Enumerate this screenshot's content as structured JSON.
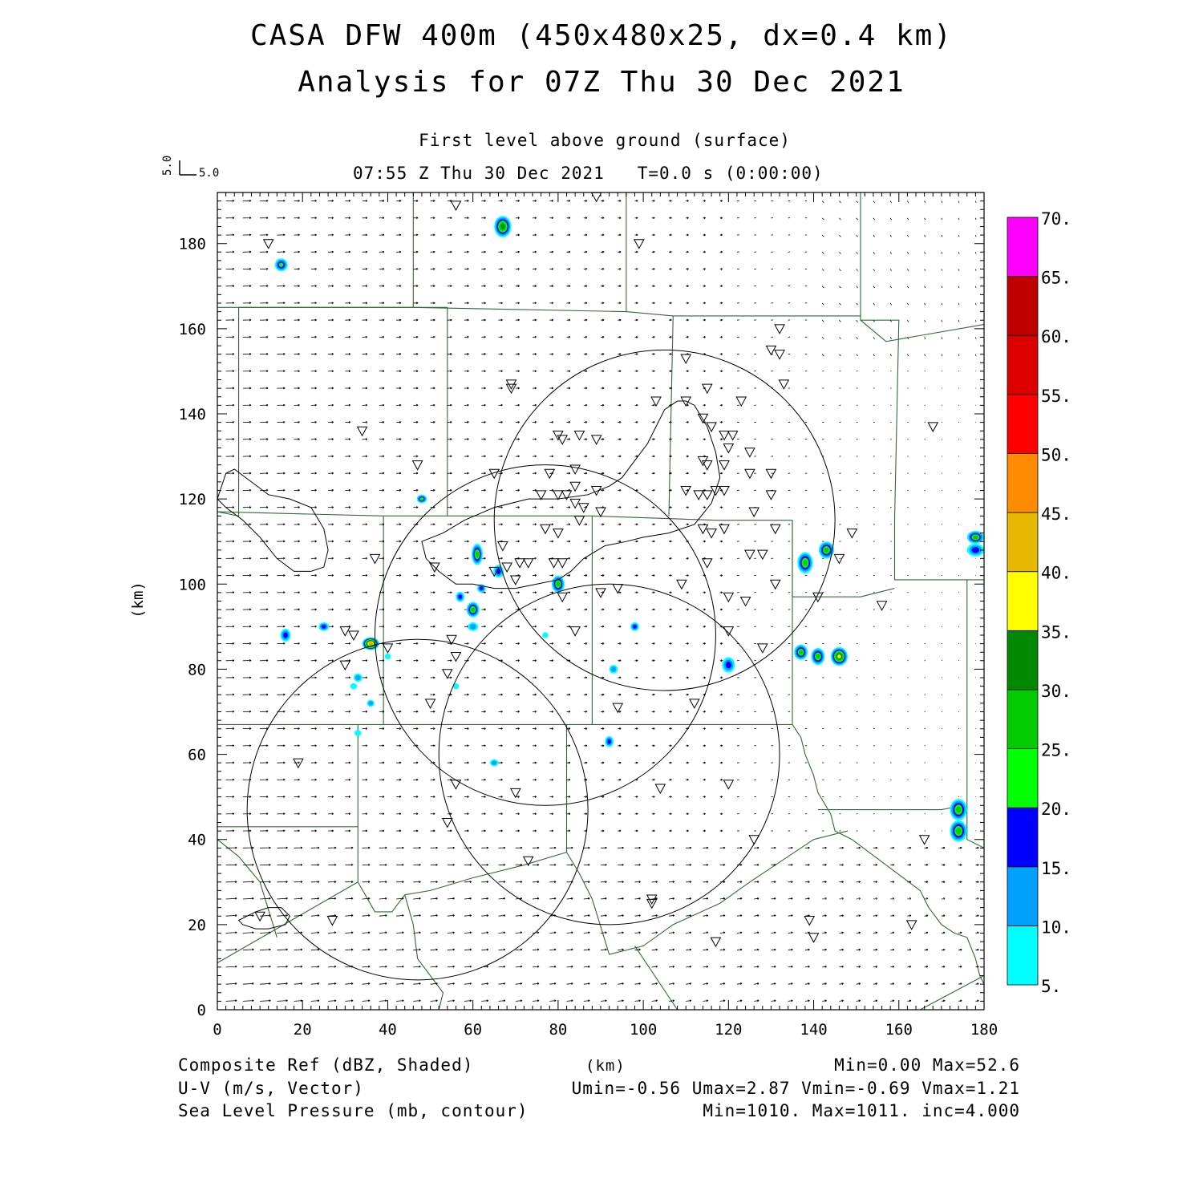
{
  "header": {
    "title_line1": "CASA DFW 400m (450x480x25, dx=0.4 km)",
    "title_line2": "Analysis for 07Z Thu 30 Dec 2021",
    "level": "First level above ground (surface)",
    "valid_time": "07:55 Z Thu 30 Dec 2021   T=0.0 s (0:00:00)",
    "vector_key_v": "5.0",
    "vector_key_u": "5.0"
  },
  "axes": {
    "x_range_km": [
      0,
      180
    ],
    "y_range_km": [
      0,
      192
    ],
    "x_ticks": [
      0,
      20,
      40,
      60,
      80,
      100,
      120,
      140,
      160,
      180
    ],
    "y_ticks": [
      0,
      20,
      40,
      60,
      80,
      100,
      120,
      140,
      160,
      180
    ],
    "x_label": "(km)",
    "y_label": "(km)"
  },
  "colorbar": {
    "labels": [
      "5.",
      "10.",
      "15.",
      "20.",
      "25.",
      "30.",
      "35.",
      "40.",
      "45.",
      "50.",
      "55.",
      "60.",
      "65.",
      "70."
    ],
    "colors": [
      "#00ffff",
      "#00a0ff",
      "#0000ff",
      "#00ff00",
      "#00cc00",
      "#008800",
      "#ffff00",
      "#e6b800",
      "#ff8c00",
      "#ff0000",
      "#dd0000",
      "#c00000",
      "#ff00ff"
    ]
  },
  "footer": {
    "field1": "Composite Ref (dBZ, Shaded)",
    "field1_stats": "Min=0.00 Max=52.6",
    "field2": "U-V (m/s, Vector)",
    "field2_stats": "Umin=-0.56 Umax=2.87 Vmin=-0.69 Vmax=1.21",
    "field3": "Sea Level Pressure (mb, contour)",
    "field3_stats": "Min=1010. Max=1011. inc=4.000",
    "x_axis_title": "(km)"
  },
  "radar_rings_km": [
    {
      "cx": 105,
      "cy": 115,
      "r": 40
    },
    {
      "cx": 77,
      "cy": 88,
      "r": 40
    },
    {
      "cx": 92,
      "cy": 60,
      "r": 40
    },
    {
      "cx": 47,
      "cy": 47,
      "r": 40
    }
  ],
  "reflectivity_cells_km": [
    {
      "x": 67,
      "y": 184,
      "rx": 2.0,
      "ry": 2.5,
      "peak": 30
    },
    {
      "x": 15,
      "y": 175,
      "rx": 1.5,
      "ry": 1.5,
      "peak": 20
    },
    {
      "x": 48,
      "y": 120,
      "rx": 1.2,
      "ry": 1.0,
      "peak": 20
    },
    {
      "x": 61,
      "y": 107,
      "rx": 1.3,
      "ry": 2.5,
      "peak": 25
    },
    {
      "x": 66,
      "y": 103,
      "rx": 1.2,
      "ry": 1.5,
      "peak": 15
    },
    {
      "x": 62,
      "y": 99,
      "rx": 1.0,
      "ry": 1.0,
      "peak": 15
    },
    {
      "x": 60,
      "y": 94,
      "rx": 1.5,
      "ry": 1.8,
      "peak": 25
    },
    {
      "x": 57,
      "y": 97,
      "rx": 1.0,
      "ry": 1.2,
      "peak": 15
    },
    {
      "x": 60,
      "y": 90,
      "rx": 1.2,
      "ry": 1.0,
      "peak": 10
    },
    {
      "x": 80,
      "y": 100,
      "rx": 1.5,
      "ry": 2.0,
      "peak": 25
    },
    {
      "x": 36,
      "y": 86,
      "rx": 2.0,
      "ry": 1.5,
      "peak": 45
    },
    {
      "x": 16,
      "y": 88,
      "rx": 1.2,
      "ry": 1.5,
      "peak": 15
    },
    {
      "x": 25,
      "y": 90,
      "rx": 1.2,
      "ry": 1.0,
      "peak": 15
    },
    {
      "x": 98,
      "y": 90,
      "rx": 1.0,
      "ry": 1.0,
      "peak": 15
    },
    {
      "x": 120,
      "y": 81,
      "rx": 1.5,
      "ry": 1.8,
      "peak": 15
    },
    {
      "x": 93,
      "y": 80,
      "rx": 1.0,
      "ry": 1.0,
      "peak": 10
    },
    {
      "x": 92,
      "y": 63,
      "rx": 1.0,
      "ry": 1.3,
      "peak": 15
    },
    {
      "x": 65,
      "y": 58,
      "rx": 1.0,
      "ry": 0.8,
      "peak": 10
    },
    {
      "x": 33,
      "y": 78,
      "rx": 1.0,
      "ry": 1.0,
      "peak": 10
    },
    {
      "x": 36,
      "y": 72,
      "rx": 0.9,
      "ry": 0.8,
      "peak": 10
    },
    {
      "x": 138,
      "y": 105,
      "rx": 1.8,
      "ry": 2.5,
      "peak": 25
    },
    {
      "x": 143,
      "y": 108,
      "rx": 1.8,
      "ry": 2.0,
      "peak": 25
    },
    {
      "x": 137,
      "y": 84,
      "rx": 1.6,
      "ry": 1.8,
      "peak": 25
    },
    {
      "x": 141,
      "y": 83,
      "rx": 1.6,
      "ry": 2.0,
      "peak": 25
    },
    {
      "x": 146,
      "y": 83,
      "rx": 2.0,
      "ry": 2.2,
      "peak": 35
    },
    {
      "x": 174,
      "y": 47,
      "rx": 2.0,
      "ry": 2.5,
      "peak": 25
    },
    {
      "x": 174,
      "y": 42,
      "rx": 2.0,
      "ry": 2.5,
      "peak": 25
    },
    {
      "x": 178,
      "y": 111,
      "rx": 2.0,
      "ry": 1.5,
      "peak": 25
    },
    {
      "x": 178,
      "y": 108,
      "rx": 2.0,
      "ry": 1.5,
      "peak": 15
    },
    {
      "x": 32,
      "y": 76,
      "rx": 0.8,
      "ry": 0.7,
      "peak": 5
    },
    {
      "x": 33,
      "y": 65,
      "rx": 0.8,
      "ry": 0.7,
      "peak": 5
    },
    {
      "x": 40,
      "y": 83,
      "rx": 0.7,
      "ry": 0.7,
      "peak": 5
    },
    {
      "x": 56,
      "y": 76,
      "rx": 0.7,
      "ry": 0.7,
      "peak": 5
    },
    {
      "x": 77,
      "y": 88,
      "rx": 0.7,
      "ry": 0.7,
      "peak": 5
    }
  ],
  "stations_km": [
    [
      56,
      189
    ],
    [
      89,
      191
    ],
    [
      12,
      180
    ],
    [
      99,
      180
    ],
    [
      132,
      160
    ],
    [
      130,
      155
    ],
    [
      132,
      154
    ],
    [
      110,
      153
    ],
    [
      69,
      146
    ],
    [
      69,
      147
    ],
    [
      133,
      147
    ],
    [
      115,
      146
    ],
    [
      110,
      143
    ],
    [
      123,
      143
    ],
    [
      103,
      143
    ],
    [
      168,
      137
    ],
    [
      34,
      136
    ],
    [
      114,
      139
    ],
    [
      116,
      137
    ],
    [
      80,
      135
    ],
    [
      81,
      134
    ],
    [
      85,
      135
    ],
    [
      89,
      134
    ],
    [
      119,
      135
    ],
    [
      121,
      135
    ],
    [
      120,
      132
    ],
    [
      125,
      131
    ],
    [
      47,
      128
    ],
    [
      114,
      129
    ],
    [
      115,
      128
    ],
    [
      119,
      128
    ],
    [
      78,
      126
    ],
    [
      84,
      127
    ],
    [
      65,
      126
    ],
    [
      125,
      126
    ],
    [
      130,
      126
    ],
    [
      84,
      123
    ],
    [
      89,
      122
    ],
    [
      82,
      121
    ],
    [
      76,
      121
    ],
    [
      80,
      121
    ],
    [
      110,
      122
    ],
    [
      113,
      121
    ],
    [
      115,
      121
    ],
    [
      117,
      122
    ],
    [
      119,
      122
    ],
    [
      130,
      121
    ],
    [
      84,
      119
    ],
    [
      86,
      118
    ],
    [
      90,
      117
    ],
    [
      126,
      117
    ],
    [
      85,
      115
    ],
    [
      119,
      113
    ],
    [
      77,
      113
    ],
    [
      80,
      112
    ],
    [
      114,
      113
    ],
    [
      116,
      112
    ],
    [
      131,
      113
    ],
    [
      67,
      109
    ],
    [
      125,
      107
    ],
    [
      128,
      107
    ],
    [
      146,
      106
    ],
    [
      149,
      112
    ],
    [
      37,
      106
    ],
    [
      71,
      105
    ],
    [
      73,
      105
    ],
    [
      68,
      104
    ],
    [
      79,
      105
    ],
    [
      81,
      105
    ],
    [
      115,
      105
    ],
    [
      65,
      103
    ],
    [
      51,
      104
    ],
    [
      70,
      101
    ],
    [
      81,
      97
    ],
    [
      90,
      98
    ],
    [
      94,
      99
    ],
    [
      109,
      100
    ],
    [
      131,
      100
    ],
    [
      120,
      97
    ],
    [
      124,
      96
    ],
    [
      141,
      97
    ],
    [
      156,
      95
    ],
    [
      84,
      89
    ],
    [
      120,
      89
    ],
    [
      30,
      89
    ],
    [
      32,
      88
    ],
    [
      40,
      85
    ],
    [
      55,
      87
    ],
    [
      56,
      83
    ],
    [
      54,
      79
    ],
    [
      30,
      81
    ],
    [
      128,
      85
    ],
    [
      50,
      72
    ],
    [
      94,
      71
    ],
    [
      112,
      72
    ],
    [
      19,
      58
    ],
    [
      56,
      53
    ],
    [
      70,
      51
    ],
    [
      104,
      52
    ],
    [
      120,
      53
    ],
    [
      54,
      44
    ],
    [
      126,
      40
    ],
    [
      166,
      40
    ],
    [
      73,
      35
    ],
    [
      102,
      26
    ],
    [
      102,
      25
    ],
    [
      10,
      22
    ],
    [
      27,
      21
    ],
    [
      139,
      21
    ],
    [
      163,
      20
    ],
    [
      140,
      17
    ],
    [
      117,
      16
    ]
  ],
  "slp_contours_km": [
    [
      [
        0,
        120
      ],
      [
        2,
        126
      ],
      [
        4,
        127
      ],
      [
        8,
        124
      ],
      [
        12,
        121
      ],
      [
        17,
        120
      ],
      [
        22,
        118
      ],
      [
        25,
        113
      ],
      [
        26,
        108
      ],
      [
        25,
        104
      ],
      [
        22,
        103
      ],
      [
        18,
        103
      ],
      [
        14,
        106
      ],
      [
        10,
        111
      ],
      [
        6,
        115
      ],
      [
        2,
        118
      ]
    ],
    [
      [
        7,
        22
      ],
      [
        9,
        23
      ],
      [
        12,
        24
      ],
      [
        15,
        24
      ],
      [
        17,
        22
      ],
      [
        16,
        20
      ],
      [
        12,
        19
      ],
      [
        9,
        19
      ],
      [
        6,
        20
      ],
      [
        5,
        21
      ]
    ],
    [
      [
        48,
        110
      ],
      [
        53,
        112
      ],
      [
        58,
        115
      ],
      [
        65,
        118
      ],
      [
        73,
        120
      ],
      [
        80,
        120
      ],
      [
        87,
        121
      ],
      [
        92,
        123
      ],
      [
        95,
        125
      ],
      [
        98,
        129
      ],
      [
        101,
        133
      ],
      [
        103,
        137
      ],
      [
        105,
        141
      ],
      [
        108,
        143
      ],
      [
        110,
        143
      ],
      [
        112,
        142
      ],
      [
        115,
        137
      ],
      [
        117,
        131
      ],
      [
        118,
        125
      ],
      [
        116,
        119
      ],
      [
        112,
        114
      ],
      [
        106,
        112
      ],
      [
        100,
        111
      ],
      [
        96,
        110
      ],
      [
        91,
        109
      ],
      [
        86,
        106
      ],
      [
        83,
        103
      ],
      [
        80,
        101
      ],
      [
        75,
        100
      ],
      [
        70,
        99
      ],
      [
        65,
        99
      ],
      [
        60,
        100
      ],
      [
        56,
        100
      ],
      [
        52,
        103
      ],
      [
        49,
        106
      ]
    ]
  ],
  "counties_km": [
    [
      [
        46,
        192
      ],
      [
        46,
        165
      ],
      [
        0,
        165
      ]
    ],
    [
      [
        46,
        165
      ],
      [
        96,
        164
      ]
    ],
    [
      [
        96,
        192
      ],
      [
        96,
        164
      ]
    ],
    [
      [
        96,
        164
      ],
      [
        107,
        163
      ],
      [
        151,
        163
      ]
    ],
    [
      [
        5,
        165
      ],
      [
        5,
        116
      ],
      [
        0,
        117
      ]
    ],
    [
      [
        5,
        165
      ],
      [
        54,
        165
      ],
      [
        54,
        116
      ]
    ],
    [
      [
        0,
        117
      ],
      [
        39,
        116
      ],
      [
        88,
        116
      ],
      [
        117,
        115
      ],
      [
        135,
        115
      ]
    ],
    [
      [
        107,
        163
      ],
      [
        106,
        116
      ]
    ],
    [
      [
        151,
        192
      ],
      [
        151,
        162
      ],
      [
        157,
        157
      ],
      [
        180,
        161
      ]
    ],
    [
      [
        151,
        162
      ],
      [
        160,
        162
      ],
      [
        159,
        115
      ]
    ],
    [
      [
        159,
        115
      ],
      [
        159,
        101
      ],
      [
        180,
        101
      ]
    ],
    [
      [
        135,
        115
      ],
      [
        135,
        97
      ],
      [
        151,
        97
      ]
    ],
    [
      [
        135,
        115
      ],
      [
        135,
        67
      ],
      [
        118,
        67
      ]
    ],
    [
      [
        151,
        97
      ],
      [
        159,
        99
      ]
    ],
    [
      [
        39,
        116
      ],
      [
        39,
        67
      ],
      [
        0,
        67
      ]
    ],
    [
      [
        88,
        116
      ],
      [
        88,
        67
      ]
    ],
    [
      [
        39,
        67
      ],
      [
        118,
        67
      ]
    ],
    [
      [
        33,
        67
      ],
      [
        33,
        30
      ]
    ],
    [
      [
        82,
        67
      ],
      [
        82,
        37
      ]
    ],
    [
      [
        0,
        43
      ],
      [
        33,
        43
      ]
    ],
    [
      [
        0,
        40
      ],
      [
        5,
        36
      ],
      [
        10,
        30
      ],
      [
        14,
        17
      ]
    ],
    [
      [
        0,
        11
      ],
      [
        33,
        30
      ]
    ],
    [
      [
        33,
        30
      ],
      [
        37,
        23
      ],
      [
        41,
        23
      ],
      [
        44,
        27
      ],
      [
        50,
        28
      ],
      [
        60,
        31
      ],
      [
        72,
        34
      ],
      [
        82,
        37
      ]
    ],
    [
      [
        82,
        37
      ],
      [
        85,
        32
      ],
      [
        88,
        26
      ],
      [
        92,
        13
      ],
      [
        100,
        15
      ],
      [
        107,
        20
      ],
      [
        118,
        25
      ],
      [
        125,
        30
      ],
      [
        140,
        40
      ],
      [
        148,
        42
      ]
    ],
    [
      [
        44,
        27
      ],
      [
        46,
        20
      ],
      [
        47,
        12
      ],
      [
        50,
        8
      ],
      [
        53,
        4
      ],
      [
        52,
        0
      ]
    ],
    [
      [
        135,
        67
      ],
      [
        137,
        64
      ],
      [
        138,
        60
      ],
      [
        140,
        55
      ],
      [
        141,
        51
      ],
      [
        144,
        46
      ],
      [
        145,
        42
      ],
      [
        149,
        40
      ],
      [
        153,
        37
      ],
      [
        157,
        34
      ],
      [
        161,
        31
      ],
      [
        165,
        28
      ],
      [
        167,
        24
      ],
      [
        170,
        20
      ],
      [
        173,
        18
      ],
      [
        176,
        17
      ],
      [
        178,
        12
      ],
      [
        179,
        8
      ],
      [
        180,
        6
      ]
    ],
    [
      [
        141,
        47
      ],
      [
        170,
        47
      ],
      [
        175,
        48
      ]
    ],
    [
      [
        98,
        15
      ],
      [
        108,
        0
      ]
    ],
    [
      [
        165,
        0
      ],
      [
        180,
        8
      ]
    ],
    [
      [
        176,
        101
      ],
      [
        176,
        40
      ],
      [
        180,
        38
      ]
    ]
  ]
}
